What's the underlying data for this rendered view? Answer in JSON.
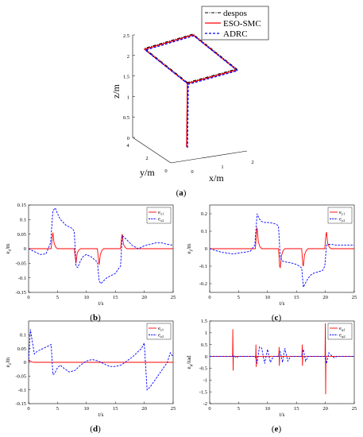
{
  "chart_data": [
    {
      "panel": "(a)",
      "panel_letter": "a",
      "type": "line",
      "projection": "3d",
      "xlabel": "x/m",
      "ylabel": "y/m",
      "zlabel": "z/m",
      "xticks": [
        "0",
        "1",
        "2"
      ],
      "yticks": [
        "0",
        "2",
        "4"
      ],
      "zticks": [
        "0",
        "0.5",
        "1",
        "1.5",
        "2",
        "2.5"
      ],
      "legend": [
        "despos",
        "ESO-SMC",
        "ADRC"
      ],
      "legend_position": "top-right",
      "series": [
        {
          "name": "despos",
          "style": "dash-dot",
          "color": "#000000",
          "points": [
            [
              0,
              0,
              0
            ],
            [
              0,
              0,
              2
            ],
            [
              2,
              0,
              2
            ],
            [
              2,
              2,
              2
            ],
            [
              0,
              2,
              2
            ],
            [
              0,
              0,
              2
            ]
          ]
        },
        {
          "name": "ESO-SMC",
          "style": "solid",
          "color": "#ff0000",
          "points": [
            [
              0,
              0,
              0
            ],
            [
              0,
              0,
              2
            ],
            [
              2,
              0,
              2
            ],
            [
              2,
              2,
              2
            ],
            [
              0,
              2,
              2
            ],
            [
              0,
              0,
              2
            ]
          ]
        },
        {
          "name": "ADRC",
          "style": "dashed",
          "color": "#0000ff",
          "points": [
            [
              0,
              0,
              0
            ],
            [
              0,
              0,
              2
            ],
            [
              2,
              0,
              2
            ],
            [
              2,
              2,
              2
            ],
            [
              0,
              2,
              2
            ],
            [
              0,
              0,
              2
            ]
          ]
        }
      ]
    },
    {
      "panel": "(b)",
      "panel_letter": "b",
      "type": "line",
      "xlabel": "t/s",
      "ylabel_main": "e",
      "ylabel_sub": "x",
      "ylabel_unit": "/m",
      "xlim": [
        0,
        25
      ],
      "ylim": [
        -0.15,
        0.15
      ],
      "xticks": [
        0,
        5,
        10,
        15,
        20,
        25
      ],
      "yticks": [
        -0.15,
        -0.1,
        -0.05,
        0,
        0.05,
        0.1,
        0.15
      ],
      "legend": [
        {
          "main": "e",
          "sub": "x1"
        },
        {
          "main": "e",
          "sub": "x2"
        }
      ],
      "legend_position": "top-right",
      "series": [
        {
          "name": "e_x1",
          "color": "#ff0000",
          "style": "solid",
          "x": [
            0,
            3.9,
            4.1,
            4.2,
            4.4,
            4.7,
            5.0,
            7.9,
            8.1,
            8.2,
            8.4,
            8.7,
            9.0,
            11.9,
            12.1,
            12.2,
            12.4,
            12.7,
            13.0,
            15.9,
            16.1,
            16.2,
            16.4,
            16.7,
            17.0,
            25
          ],
          "y": [
            0,
            0,
            0.04,
            0.055,
            0.02,
            0.005,
            0,
            0,
            -0.035,
            -0.05,
            -0.015,
            -0.004,
            0,
            0,
            -0.04,
            -0.055,
            -0.02,
            -0.005,
            0,
            0,
            0.04,
            0.05,
            0.015,
            0.004,
            0,
            0
          ]
        },
        {
          "name": "e_x2",
          "color": "#0000ff",
          "style": "dashed",
          "x": [
            0,
            1,
            2,
            3,
            3.8,
            4.2,
            4.6,
            5,
            5.5,
            6,
            6.5,
            7,
            7.5,
            7.9,
            8.2,
            8.5,
            9,
            9.5,
            10,
            10.5,
            11,
            11.5,
            11.9,
            12.2,
            12.5,
            13,
            13.5,
            14,
            14.5,
            15,
            15.5,
            15.9,
            16.2,
            16.5,
            17,
            17.5,
            18,
            18.5,
            19,
            20,
            21,
            22,
            23,
            24,
            25
          ],
          "y": [
            0,
            -0.01,
            -0.02,
            -0.018,
            0.02,
            0.13,
            0.14,
            0.12,
            0.1,
            0.09,
            0.08,
            0.075,
            0.07,
            0.06,
            -0.06,
            -0.065,
            -0.04,
            -0.025,
            -0.02,
            -0.025,
            -0.03,
            -0.04,
            -0.045,
            -0.11,
            -0.12,
            -0.11,
            -0.1,
            -0.095,
            -0.09,
            -0.085,
            -0.07,
            -0.06,
            0.045,
            0.04,
            0.03,
            0.02,
            0.01,
            0.005,
            0,
            0.01,
            0.015,
            0.02,
            0.02,
            0.015,
            0.012
          ]
        }
      ]
    },
    {
      "panel": "(c)",
      "panel_letter": "c",
      "type": "line",
      "xlabel": "t/s",
      "ylabel_main": "e",
      "ylabel_sub": "y",
      "ylabel_unit": "/m",
      "xlim": [
        0,
        25
      ],
      "ylim": [
        -0.25,
        0.25
      ],
      "xticks": [
        0,
        5,
        10,
        15,
        20,
        25
      ],
      "yticks": [
        -0.2,
        -0.1,
        0,
        0.1,
        0.2
      ],
      "legend": [
        {
          "main": "e",
          "sub": "y1"
        },
        {
          "main": "e",
          "sub": "y2"
        }
      ],
      "legend_position": "top-right",
      "series": [
        {
          "name": "e_y1",
          "color": "#ff0000",
          "style": "solid",
          "x": [
            0,
            7.9,
            8.1,
            8.2,
            8.4,
            8.7,
            9.0,
            11.9,
            12.1,
            12.2,
            12.4,
            12.7,
            13.0,
            15.9,
            16.1,
            16.2,
            16.4,
            16.7,
            17.0,
            19.9,
            20.1,
            20.2,
            20.4,
            20.7,
            21.0,
            25
          ],
          "y": [
            0,
            0,
            0.1,
            0.12,
            0.04,
            0.01,
            0,
            0,
            -0.1,
            -0.11,
            -0.04,
            -0.01,
            0,
            0,
            -0.09,
            -0.1,
            -0.035,
            -0.01,
            0,
            0,
            0.08,
            0.095,
            0.03,
            0.008,
            0,
            0
          ]
        },
        {
          "name": "e_y2",
          "color": "#0000ff",
          "style": "dashed",
          "x": [
            0,
            1,
            2,
            3,
            4,
            5,
            6,
            7,
            7.8,
            8.2,
            8.6,
            9,
            9.5,
            10,
            10.5,
            11,
            11.5,
            11.9,
            12.2,
            12.5,
            13,
            13.5,
            14,
            14.5,
            15,
            15.5,
            15.9,
            16.2,
            16.5,
            17,
            17.5,
            18,
            18.5,
            19,
            19.5,
            19.9,
            20.2,
            20.6,
            21,
            22,
            23,
            24,
            25
          ],
          "y": [
            0,
            -0.01,
            -0.02,
            -0.025,
            -0.03,
            -0.025,
            -0.02,
            -0.015,
            0.02,
            0.2,
            0.17,
            0.155,
            0.15,
            0.15,
            0.148,
            0.145,
            0.14,
            0.13,
            -0.05,
            -0.07,
            -0.075,
            -0.078,
            -0.08,
            -0.085,
            -0.09,
            -0.1,
            -0.11,
            -0.22,
            -0.2,
            -0.17,
            -0.15,
            -0.14,
            -0.135,
            -0.13,
            -0.125,
            -0.1,
            0.02,
            0.025,
            0.025,
            0.02,
            0.02,
            0.02,
            0.02
          ]
        }
      ]
    },
    {
      "panel": "(d)",
      "panel_letter": "d",
      "type": "line",
      "xlabel": "t/s",
      "ylabel_main": "e",
      "ylabel_sub": "z",
      "ylabel_unit": "/m",
      "xlim": [
        0,
        25
      ],
      "ylim": [
        -0.15,
        0.15
      ],
      "xticks": [
        0,
        5,
        10,
        15,
        20,
        25
      ],
      "yticks": [
        -0.15,
        -0.1,
        -0.05,
        0,
        0.05,
        0.1
      ],
      "legend": [
        {
          "main": "e",
          "sub": "z1"
        },
        {
          "main": "e",
          "sub": "z2"
        }
      ],
      "legend_position": "top-right",
      "series": [
        {
          "name": "e_z1",
          "color": "#ff0000",
          "style": "solid",
          "x": [
            0,
            0.1,
            0.3,
            0.6,
            1,
            25
          ],
          "y": [
            0,
            0.008,
            0.004,
            0.001,
            0,
            0
          ]
        },
        {
          "name": "e_z2",
          "color": "#0000ff",
          "style": "dashed",
          "x": [
            0,
            0.3,
            0.6,
            1,
            1.5,
            2,
            2.5,
            3,
            3.5,
            3.9,
            4.2,
            4.5,
            5,
            5.5,
            6,
            7,
            8,
            9,
            10,
            11,
            12,
            13,
            14,
            15,
            16,
            17,
            18,
            19,
            19.5,
            20,
            20.5,
            21,
            22,
            23,
            24,
            24.5,
            25
          ],
          "y": [
            0,
            0.12,
            0.08,
            0.03,
            0.04,
            0.045,
            0.05,
            0.055,
            0.06,
            0.065,
            -0.045,
            -0.04,
            -0.02,
            -0.01,
            -0.02,
            -0.035,
            -0.03,
            -0.01,
            0.005,
            0.01,
            0.005,
            -0.005,
            -0.015,
            -0.015,
            -0.01,
            0.005,
            0.02,
            0.04,
            0.05,
            0.07,
            -0.1,
            -0.09,
            -0.06,
            -0.03,
            0,
            0.035,
            0.02
          ]
        }
      ]
    },
    {
      "panel": "(e)",
      "panel_letter": "e",
      "type": "line",
      "xlabel": "t/s",
      "ylabel_main": "e",
      "ylabel_sub": "φ",
      "ylabel_unit": "/rad",
      "xlim": [
        0,
        25
      ],
      "ylim": [
        -2,
        1.5
      ],
      "xticks": [
        0,
        5,
        10,
        15,
        20,
        25
      ],
      "yticks": [
        -2,
        -1.5,
        -1,
        -0.5,
        0,
        0.5,
        1,
        1.5
      ],
      "legend": [
        {
          "main": "e",
          "sub": "φ1"
        },
        {
          "main": "e",
          "sub": "φ2"
        }
      ],
      "legend_position": "top-right",
      "series": [
        {
          "name": "e_phi1",
          "color": "#ff0000",
          "style": "solid",
          "x": [
            0,
            3.95,
            4.0,
            4.05,
            4.1,
            7.95,
            8.0,
            8.05,
            8.1,
            11.95,
            12.0,
            12.05,
            12.1,
            15.95,
            16.0,
            16.05,
            16.1,
            19.95,
            20.0,
            20.05,
            20.1,
            25
          ],
          "y": [
            0,
            0,
            1.15,
            -0.6,
            0,
            0,
            0.5,
            -0.45,
            0,
            0,
            0.4,
            -0.4,
            0,
            0,
            0.5,
            -0.4,
            0,
            0,
            1.4,
            -1.6,
            0,
            0
          ]
        },
        {
          "name": "e_phi2",
          "color": "#0000ff",
          "style": "dashed",
          "x": [
            0,
            3.9,
            4.2,
            4.5,
            5,
            7.9,
            8.2,
            8.6,
            9,
            9.5,
            10,
            10.5,
            11,
            11.9,
            12.2,
            12.6,
            13,
            13.5,
            14,
            15.9,
            16.2,
            16.6,
            17,
            19.9,
            20.2,
            20.6,
            21,
            21.5,
            22,
            25
          ],
          "y": [
            0,
            0,
            0.05,
            -0.05,
            0,
            0,
            -0.3,
            0.4,
            0.35,
            -0.3,
            0.3,
            -0.25,
            0,
            0,
            0.2,
            -0.25,
            0.35,
            -0.2,
            0,
            0,
            0.3,
            -0.2,
            0,
            0,
            -0.3,
            0.15,
            0.05,
            -0.05,
            0,
            0
          ]
        }
      ]
    }
  ]
}
